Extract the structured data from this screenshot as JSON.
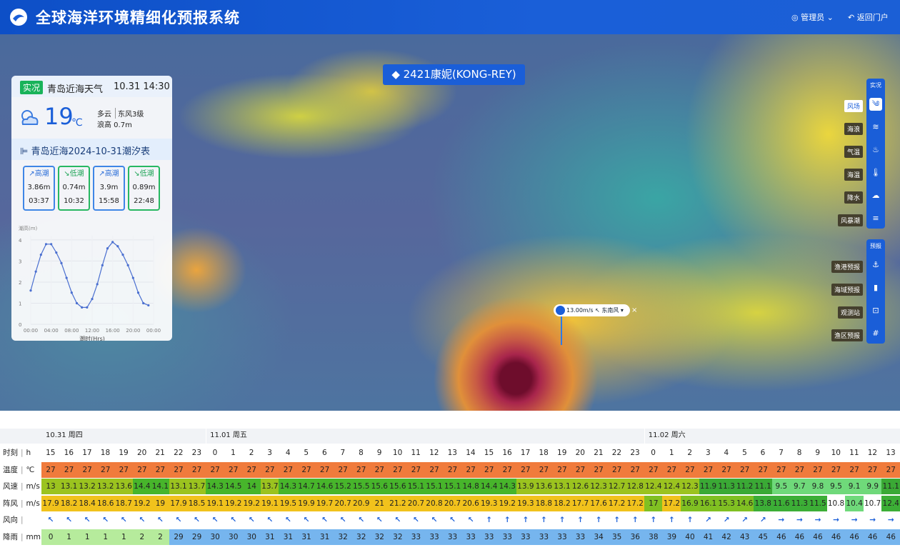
{
  "header": {
    "title": "全球海洋环境精细化预报系统",
    "user": "管理员",
    "back": "返回门户"
  },
  "typhoon": {
    "label": "2421康妮(KONG-REY)"
  },
  "popup": {
    "speed": "13.00m/s",
    "direction": "东南风"
  },
  "weather": {
    "tag": "实况",
    "place": "青岛近海天气",
    "time": "10.31 14:30",
    "temp": 19,
    "unit": "℃",
    "sky": "多云",
    "wind": "东风3级",
    "wave": "浪高 0.7m",
    "tide_title": "青岛近海2024-10-31潮汐表",
    "tides": [
      {
        "type": "高潮",
        "height": "3.86m",
        "time": "03:37"
      },
      {
        "type": "低潮",
        "height": "0.74m",
        "time": "10:32"
      },
      {
        "type": "高潮",
        "height": "3.9m",
        "time": "15:58"
      },
      {
        "type": "低潮",
        "height": "0.89m",
        "time": "22:48"
      }
    ]
  },
  "chart_data": {
    "type": "line",
    "y_label": "潮高(m)",
    "x_label": "潮时(Hrs)",
    "x": [
      0,
      1,
      2,
      3,
      4,
      5,
      6,
      7,
      8,
      9,
      10,
      11,
      12,
      13,
      14,
      15,
      16,
      17,
      18,
      19,
      20,
      21,
      22,
      23
    ],
    "series": [
      {
        "color": "#4a6fd0",
        "values": [
          1.6,
          2.5,
          3.3,
          3.8,
          3.8,
          3.4,
          2.9,
          2.2,
          1.5,
          1.0,
          0.8,
          0.8,
          1.2,
          1.9,
          2.8,
          3.6,
          3.9,
          3.7,
          3.3,
          2.8,
          2.2,
          1.5,
          1.0,
          0.9
        ]
      }
    ],
    "xlim": [
      0,
      24
    ],
    "xticks": [
      {
        "value": 0,
        "label": "00:00"
      },
      {
        "value": 4,
        "label": "04:00"
      },
      {
        "value": 8,
        "label": "08:00"
      },
      {
        "value": 12,
        "label": "12:00"
      },
      {
        "value": 16,
        "label": "16:00"
      },
      {
        "value": 20,
        "label": "20:00"
      },
      {
        "value": 24,
        "label": "00:00"
      }
    ],
    "ylim": [
      0,
      4.2
    ],
    "yticks": [
      0,
      1,
      2,
      3,
      4
    ],
    "grid": true
  },
  "toolbar": {
    "live": {
      "title": "实况",
      "items": [
        "风场",
        "海浪",
        "气温",
        "海温",
        "降水",
        "风暴潮"
      ]
    },
    "forecast": {
      "title": "预报",
      "items": [
        "渔港预报",
        "海域预报",
        "观测站",
        "渔区预报"
      ]
    }
  },
  "table": {
    "hour_row": {
      "label": "时刻",
      "unit": "h"
    },
    "days": [
      {
        "label": "10.31 周四",
        "hours": [
          15,
          16,
          17,
          18,
          19,
          20,
          21,
          22,
          23
        ]
      },
      {
        "label": "11.01 周五",
        "hours": [
          0,
          1,
          2,
          3,
          4,
          5,
          6,
          7,
          8,
          9,
          10,
          11,
          12,
          13,
          14,
          15,
          16,
          17,
          18,
          19,
          20,
          21,
          22,
          23
        ]
      },
      {
        "label": "11.02 周六",
        "hours": [
          0,
          1,
          2,
          3,
          4,
          5,
          6,
          7,
          8,
          9,
          10,
          11,
          12,
          13
        ]
      }
    ],
    "rows": [
      {
        "label": "温度",
        "unit": "℃",
        "values": [
          27,
          27,
          27,
          27,
          27,
          27,
          27,
          27,
          27,
          27,
          27,
          27,
          27,
          27,
          27,
          27,
          27,
          27,
          27,
          27,
          27,
          27,
          27,
          27,
          27,
          27,
          27,
          27,
          27,
          27,
          27,
          27,
          27,
          27,
          27,
          27,
          27,
          27,
          27,
          27,
          27,
          27,
          27,
          27,
          27,
          27,
          27
        ]
      },
      {
        "label": "风速",
        "unit": "m/s",
        "values": [
          13.0,
          13.1,
          13.2,
          13.2,
          13.6,
          14.4,
          14.1,
          13.1,
          13.7,
          14.3,
          14.5,
          14.0,
          13.7,
          14.3,
          14.7,
          14.6,
          15.2,
          15.5,
          15.6,
          15.6,
          15.1,
          15.1,
          15.1,
          14.8,
          14.4,
          14.3,
          13.9,
          13.6,
          13.1,
          12.6,
          12.3,
          12.7,
          12.8,
          12.4,
          12.4,
          12.3,
          11.9,
          11.3,
          11.2,
          11.1,
          9.5,
          9.7,
          9.8,
          9.5,
          9.1,
          9.9,
          11.1
        ]
      },
      {
        "label": "阵风",
        "unit": "m/s",
        "values": [
          17.9,
          18.2,
          18.4,
          18.6,
          18.7,
          19.2,
          19.0,
          17.9,
          18.5,
          19.1,
          19.2,
          19.2,
          19.1,
          19.5,
          19.9,
          19.7,
          20.7,
          20.9,
          21.0,
          21.2,
          20.7,
          20.8,
          20.7,
          20.6,
          19.3,
          19.2,
          19.3,
          18.8,
          18.2,
          17.7,
          17.6,
          17.2,
          17.2,
          17.0,
          17.2,
          16.9,
          16.1,
          15.3,
          14.6,
          13.8,
          11.6,
          11.3,
          11.5,
          10.8,
          10.4,
          10.7,
          12.4
        ]
      },
      {
        "label": "风向",
        "values": [
          "↖",
          "↖",
          "↖",
          "↖",
          "↖",
          "↖",
          "↖",
          "↖",
          "↖",
          "↖",
          "↖",
          "↖",
          "↖",
          "↖",
          "↖",
          "↖",
          "↖",
          "↖",
          "↖",
          "↖",
          "↖",
          "↖",
          "↖",
          "↖",
          "↑",
          "↑",
          "↑",
          "↑",
          "↑",
          "↑",
          "↑",
          "↑",
          "↑",
          "↑",
          "↑",
          "↑",
          "↗",
          "↗",
          "↗",
          "↗",
          "→",
          "→",
          "→",
          "→",
          "→",
          "→",
          "→"
        ]
      },
      {
        "label": "降雨",
        "unit": "mm",
        "values": [
          0,
          1,
          1,
          1,
          1,
          2,
          2,
          29,
          29,
          30,
          30,
          30,
          31,
          31,
          31,
          31,
          32,
          32,
          32,
          32,
          33,
          33,
          33,
          33,
          33,
          33,
          33,
          33,
          33,
          33,
          34,
          35,
          36,
          38,
          39,
          40,
          41,
          42,
          43,
          45,
          46,
          46,
          46,
          46,
          46,
          46,
          46
        ]
      }
    ]
  }
}
